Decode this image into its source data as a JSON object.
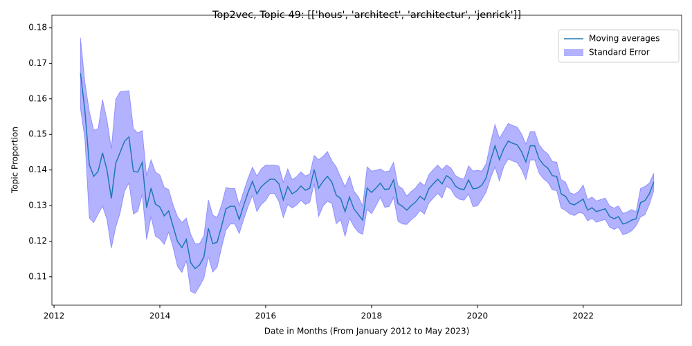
{
  "chart_data": {
    "type": "line",
    "title": "Top2vec, Topic 49: [['hous', 'architect', 'architectur', 'jenrick']]",
    "x_label": "Date in Months (From January 2012 to May 2023)",
    "y_label": "Topic Proportion",
    "xlim": [
      2011.96,
      2023.86
    ],
    "ylim": [
      0.102,
      0.1835
    ],
    "xticks": [
      2012,
      2014,
      2016,
      2018,
      2020,
      2022
    ],
    "yticks": [
      0.11,
      0.12,
      0.13,
      0.14,
      0.15,
      0.16,
      0.17,
      0.18
    ],
    "legend": "upper right",
    "x": [
      2012.5,
      2012.5833,
      2012.6667,
      2012.75,
      2012.8333,
      2012.9167,
      2013,
      2013.0833,
      2013.1667,
      2013.25,
      2013.3333,
      2013.4167,
      2013.5,
      2013.5833,
      2013.6667,
      2013.75,
      2013.8333,
      2013.9167,
      2014,
      2014.0833,
      2014.1667,
      2014.25,
      2014.3333,
      2014.4167,
      2014.5,
      2014.5833,
      2014.6667,
      2014.75,
      2014.8333,
      2014.9167,
      2015,
      2015.0833,
      2015.1667,
      2015.25,
      2015.3333,
      2015.4167,
      2015.5,
      2015.5833,
      2015.6667,
      2015.75,
      2015.8333,
      2015.9167,
      2016,
      2016.0833,
      2016.1667,
      2016.25,
      2016.3333,
      2016.4167,
      2016.5,
      2016.5833,
      2016.6667,
      2016.75,
      2016.8333,
      2016.9167,
      2017,
      2017.0833,
      2017.1667,
      2017.25,
      2017.3333,
      2017.4167,
      2017.5,
      2017.5833,
      2017.6667,
      2017.75,
      2017.8333,
      2017.9167,
      2018,
      2018.0833,
      2018.1667,
      2018.25,
      2018.3333,
      2018.4167,
      2018.5,
      2018.5833,
      2018.6667,
      2018.75,
      2018.8333,
      2018.9167,
      2019,
      2019.0833,
      2019.1667,
      2019.25,
      2019.3333,
      2019.4167,
      2019.5,
      2019.5833,
      2019.6667,
      2019.75,
      2019.8333,
      2019.9167,
      2020,
      2020.0833,
      2020.1667,
      2020.25,
      2020.3333,
      2020.4167,
      2020.5,
      2020.5833,
      2020.6667,
      2020.75,
      2020.8333,
      2020.9167,
      2021,
      2021.0833,
      2021.1667,
      2021.25,
      2021.3333,
      2021.4167,
      2021.5,
      2021.5833,
      2021.6667,
      2021.75,
      2021.8333,
      2021.9167,
      2022,
      2022.0833,
      2022.1667,
      2022.25,
      2022.3333,
      2022.4167,
      2022.5,
      2022.5833,
      2022.6667,
      2022.75,
      2022.8333,
      2022.9167,
      2023,
      2023.0833,
      2023.1667,
      2023.25,
      2023.3333
    ],
    "series": [
      {
        "name": "Moving averages",
        "color": "#1f77b4",
        "values": [
          0.1672,
          0.1567,
          0.1415,
          0.1382,
          0.1396,
          0.1448,
          0.1401,
          0.132,
          0.1419,
          0.145,
          0.1481,
          0.1493,
          0.1396,
          0.1394,
          0.1421,
          0.1294,
          0.1349,
          0.1304,
          0.1296,
          0.1271,
          0.1285,
          0.1242,
          0.1199,
          0.1182,
          0.1205,
          0.1139,
          0.1123,
          0.1133,
          0.1156,
          0.1236,
          0.1193,
          0.1197,
          0.1242,
          0.1291,
          0.1298,
          0.1298,
          0.1261,
          0.13,
          0.1337,
          0.1368,
          0.1333,
          0.1353,
          0.1364,
          0.1374,
          0.1374,
          0.1361,
          0.1316,
          0.1353,
          0.1333,
          0.1341,
          0.1355,
          0.1343,
          0.1349,
          0.1401,
          0.1349,
          0.1368,
          0.1382,
          0.1366,
          0.1329,
          0.132,
          0.1283,
          0.1324,
          0.1291,
          0.1275,
          0.1259,
          0.1349,
          0.1337,
          0.1349,
          0.1363,
          0.1345,
          0.1347,
          0.1372,
          0.1306,
          0.1298,
          0.1287,
          0.13,
          0.131,
          0.1326,
          0.1316,
          0.1347,
          0.1361,
          0.1374,
          0.1361,
          0.1384,
          0.1376,
          0.1355,
          0.1347,
          0.1345,
          0.1372,
          0.1347,
          0.1349,
          0.1357,
          0.1378,
          0.1427,
          0.1468,
          0.1429,
          0.146,
          0.1481,
          0.1475,
          0.1471,
          0.1452,
          0.1423,
          0.1468,
          0.1468,
          0.1431,
          0.1415,
          0.1405,
          0.1384,
          0.1382,
          0.1333,
          0.1326,
          0.1306,
          0.1302,
          0.131,
          0.1318,
          0.1287,
          0.1294,
          0.1283,
          0.1287,
          0.1291,
          0.1269,
          0.1263,
          0.1269,
          0.1248,
          0.1252,
          0.1259,
          0.1263,
          0.1308,
          0.1314,
          0.1333,
          0.1366
        ],
        "errors": [
          0.01,
          0.008,
          0.015,
          0.013,
          0.012,
          0.015,
          0.014,
          0.014,
          0.018,
          0.017,
          0.014,
          0.013,
          0.012,
          0.011,
          0.009,
          0.009,
          0.008,
          0.009,
          0.009,
          0.008,
          0.006,
          0.006,
          0.007,
          0.007,
          0.006,
          0.008,
          0.007,
          0.006,
          0.006,
          0.008,
          0.008,
          0.007,
          0.006,
          0.006,
          0.005,
          0.005,
          0.004,
          0.004,
          0.004,
          0.004,
          0.005,
          0.005,
          0.005,
          0.004,
          0.004,
          0.005,
          0.005,
          0.005,
          0.004,
          0.004,
          0.004,
          0.004,
          0.004,
          0.004,
          0.008,
          0.007,
          0.007,
          0.006,
          0.008,
          0.006,
          0.007,
          0.006,
          0.005,
          0.005,
          0.004,
          0.006,
          0.006,
          0.005,
          0.004,
          0.005,
          0.005,
          0.005,
          0.005,
          0.005,
          0.004,
          0.004,
          0.004,
          0.004,
          0.004,
          0.004,
          0.004,
          0.004,
          0.004,
          0.003,
          0.003,
          0.003,
          0.003,
          0.003,
          0.004,
          0.005,
          0.005,
          0.004,
          0.004,
          0.005,
          0.006,
          0.006,
          0.005,
          0.005,
          0.005,
          0.005,
          0.005,
          0.005,
          0.004,
          0.004,
          0.004,
          0.004,
          0.004,
          0.004,
          0.004,
          0.004,
          0.004,
          0.003,
          0.003,
          0.003,
          0.004,
          0.003,
          0.003,
          0.003,
          0.003,
          0.003,
          0.003,
          0.003,
          0.003,
          0.003,
          0.003,
          0.003,
          0.002,
          0.004,
          0.004,
          0.003,
          0.0025
        ],
        "error_name": "Standard Error",
        "error_color": "#0000ff",
        "error_opacity": 0.3
      }
    ]
  }
}
